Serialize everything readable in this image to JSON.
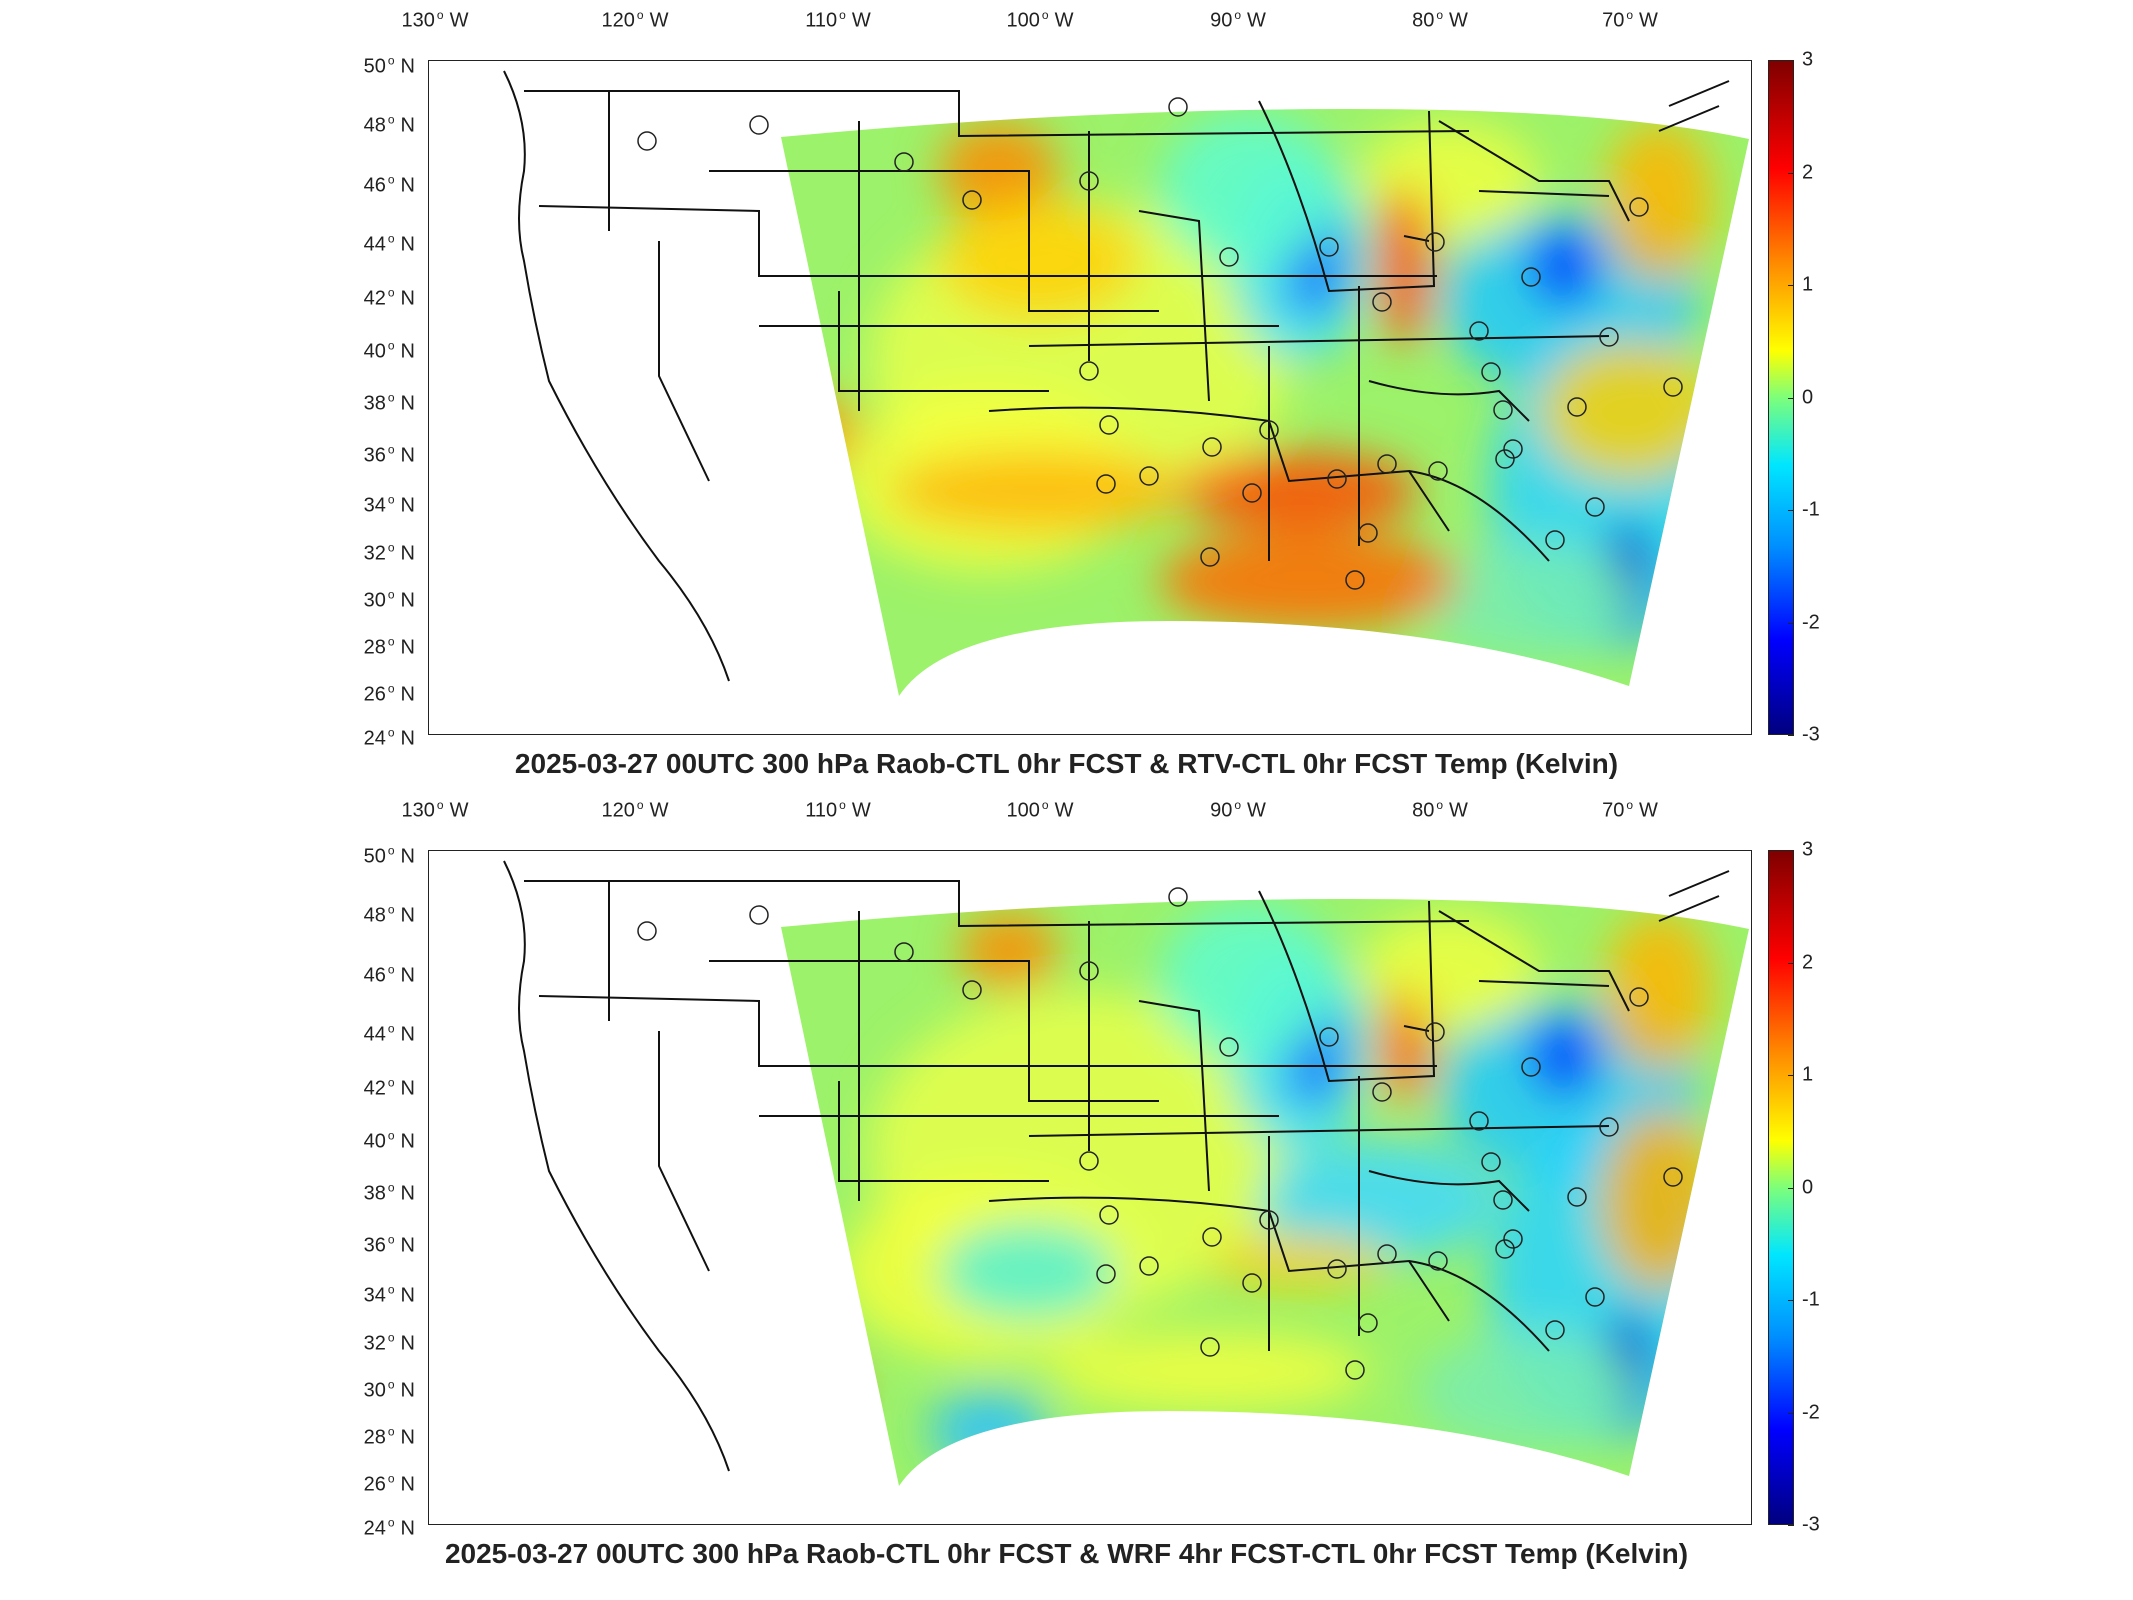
{
  "panels": [
    {
      "title": "2025-03-27 00UTC 300 hPa Raob-CTL 0hr FCST & RTV-CTL 0hr FCST Temp (Kelvin)",
      "variant": "rtv"
    },
    {
      "title": "2025-03-27 00UTC 300 hPa Raob-CTL 0hr FCST & WRF 4hr FCST-CTL 0hr FCST Temp (Kelvin)",
      "variant": "wrf"
    }
  ],
  "lon_labels": [
    "130",
    "120",
    "110",
    "100",
    "90",
    "80",
    "70"
  ],
  "lon_hemisphere": "W",
  "lat_labels": [
    "50",
    "48",
    "46",
    "44",
    "42",
    "40",
    "38",
    "36",
    "34",
    "32",
    "30",
    "28",
    "26",
    "24"
  ],
  "lat_hemisphere": "N",
  "colorbar": {
    "ticks": [
      "3",
      "2",
      "1",
      "0",
      "-1",
      "-2",
      "-3"
    ],
    "min": -3,
    "max": 3,
    "colormap": "jet"
  }
}
